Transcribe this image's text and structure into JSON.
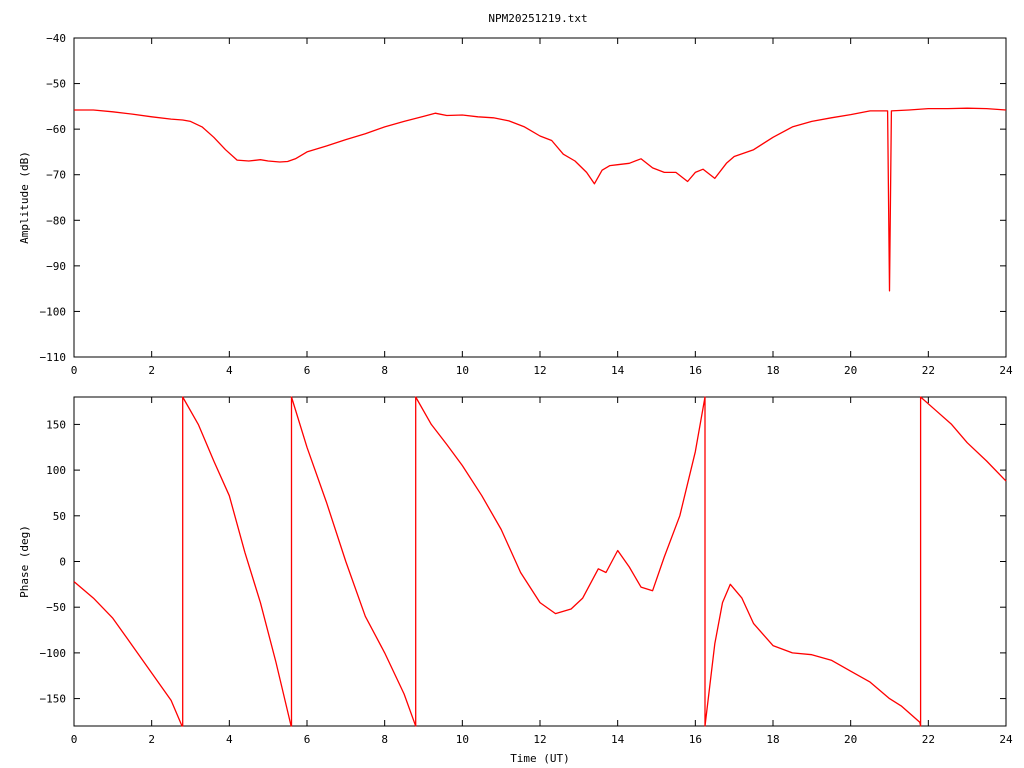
{
  "title": "NPM20251219.txt",
  "colors": {
    "series": "#ff0000",
    "axis": "#000000",
    "background": "#ffffff"
  },
  "chart_data": [
    {
      "type": "line",
      "ylabel": "Amplitude (dB)",
      "xlabel": "",
      "xlim": [
        0,
        24
      ],
      "ylim": [
        -110,
        -40
      ],
      "xticks": [
        0,
        2,
        4,
        6,
        8,
        10,
        12,
        14,
        16,
        18,
        20,
        22,
        24
      ],
      "xtick_labels": [
        "0",
        "2",
        "4",
        "6",
        "8",
        "10",
        "12",
        "14",
        "16",
        "18",
        "20",
        "22",
        "24"
      ],
      "yticks": [
        -110,
        -100,
        -90,
        -80,
        -70,
        -60,
        -50,
        -40
      ],
      "ytick_labels": [
        "−110",
        "−100",
        "−90",
        "−80",
        "−70",
        "−60",
        "−50",
        "−40"
      ],
      "grid": false,
      "series": [
        {
          "x": [
            0,
            0.5,
            1,
            1.5,
            2,
            2.5,
            2.8,
            3.0,
            3.3,
            3.6,
            3.9,
            4.2,
            4.5,
            4.8,
            5.0,
            5.3,
            5.5,
            5.7,
            6.0,
            6.5,
            7.0,
            7.5,
            8.0,
            8.5,
            9.0,
            9.3,
            9.6,
            10.0,
            10.4,
            10.8,
            11.2,
            11.6,
            12.0,
            12.3,
            12.6,
            12.9,
            13.2,
            13.4,
            13.6,
            13.8,
            14.0,
            14.3,
            14.6,
            14.9,
            15.2,
            15.5,
            15.8,
            16.0,
            16.2,
            16.5,
            16.8,
            17.0,
            17.5,
            18.0,
            18.5,
            19.0,
            19.5,
            20.0,
            20.5,
            20.95,
            21.0,
            21.05,
            21.5,
            22.0,
            22.5,
            23.0,
            23.5,
            24.0
          ],
          "y": [
            -55.8,
            -55.8,
            -56.2,
            -56.7,
            -57.3,
            -57.8,
            -58,
            -58.3,
            -59.5,
            -61.8,
            -64.5,
            -66.8,
            -67,
            -66.7,
            -67,
            -67.2,
            -67.1,
            -66.5,
            -65,
            -63.7,
            -62.3,
            -61,
            -59.5,
            -58.3,
            -57.2,
            -56.5,
            -57,
            -56.9,
            -57.3,
            -57.5,
            -58.2,
            -59.5,
            -61.5,
            -62.5,
            -65.5,
            -67,
            -69.5,
            -72,
            -69,
            -68,
            -67.8,
            -67.5,
            -66.5,
            -68.5,
            -69.5,
            -69.5,
            -71.5,
            -69.5,
            -68.8,
            -70.8,
            -67.5,
            -66,
            -64.5,
            -61.8,
            -59.5,
            -58.3,
            -57.5,
            -56.8,
            -56,
            -56,
            -95.5,
            -56,
            -55.8,
            -55.5,
            -55.5,
            -55.4,
            -55.5,
            -55.8
          ]
        }
      ]
    },
    {
      "type": "line",
      "ylabel": "Phase (deg)",
      "xlabel": "Time (UT)",
      "xlim": [
        0,
        24
      ],
      "ylim": [
        -180,
        180
      ],
      "xticks": [
        0,
        2,
        4,
        6,
        8,
        10,
        12,
        14,
        16,
        18,
        20,
        22,
        24
      ],
      "xtick_labels": [
        "0",
        "2",
        "4",
        "6",
        "8",
        "10",
        "12",
        "14",
        "16",
        "18",
        "20",
        "22",
        "24"
      ],
      "yticks": [
        -150,
        -100,
        -50,
        0,
        50,
        100,
        150
      ],
      "ytick_labels": [
        "−150",
        "−100",
        "−50",
        "0",
        "50",
        "100",
        "150"
      ],
      "grid": false,
      "series": [
        {
          "x": [
            0,
            0.5,
            1.0,
            1.5,
            2.0,
            2.5,
            2.78,
            2.8,
            2.8,
            3.2,
            3.6,
            4.0,
            4.4,
            4.8,
            5.2,
            5.59,
            5.6,
            5.6,
            6.0,
            6.5,
            7.0,
            7.5,
            8.0,
            8.5,
            8.78,
            8.8,
            8.8,
            9.2,
            9.6,
            10.0,
            10.5,
            11.0,
            11.5,
            12.0,
            12.4,
            12.8,
            13.1,
            13.5,
            13.7,
            14.0,
            14.3,
            14.6,
            14.9,
            15.2,
            15.6,
            16.0,
            16.25,
            16.25,
            16.5,
            16.7,
            16.9,
            17.2,
            17.5,
            18.0,
            18.5,
            19.0,
            19.5,
            20.0,
            20.5,
            21.0,
            21.3,
            21.78,
            21.8,
            21.8,
            22.2,
            22.6,
            23.0,
            23.5,
            24.0
          ],
          "y": [
            -22,
            -40,
            -62,
            -92,
            -122,
            -152,
            -180,
            -180,
            180,
            150,
            110,
            72,
            10,
            -45,
            -110,
            -180,
            -180,
            180,
            125,
            65,
            0,
            -60,
            -100,
            -145,
            -178,
            -180,
            180,
            150,
            128,
            105,
            72,
            35,
            -12,
            -45,
            -57,
            -52,
            -40,
            -8,
            -12,
            12,
            -6,
            -28,
            -32,
            5,
            50,
            120,
            180,
            -180,
            -90,
            -45,
            -25,
            -40,
            -68,
            -92,
            -100,
            -102,
            -108,
            -120,
            -132,
            -150,
            -158,
            -176,
            -180,
            180,
            165,
            150,
            130,
            110,
            88
          ]
        }
      ]
    }
  ]
}
